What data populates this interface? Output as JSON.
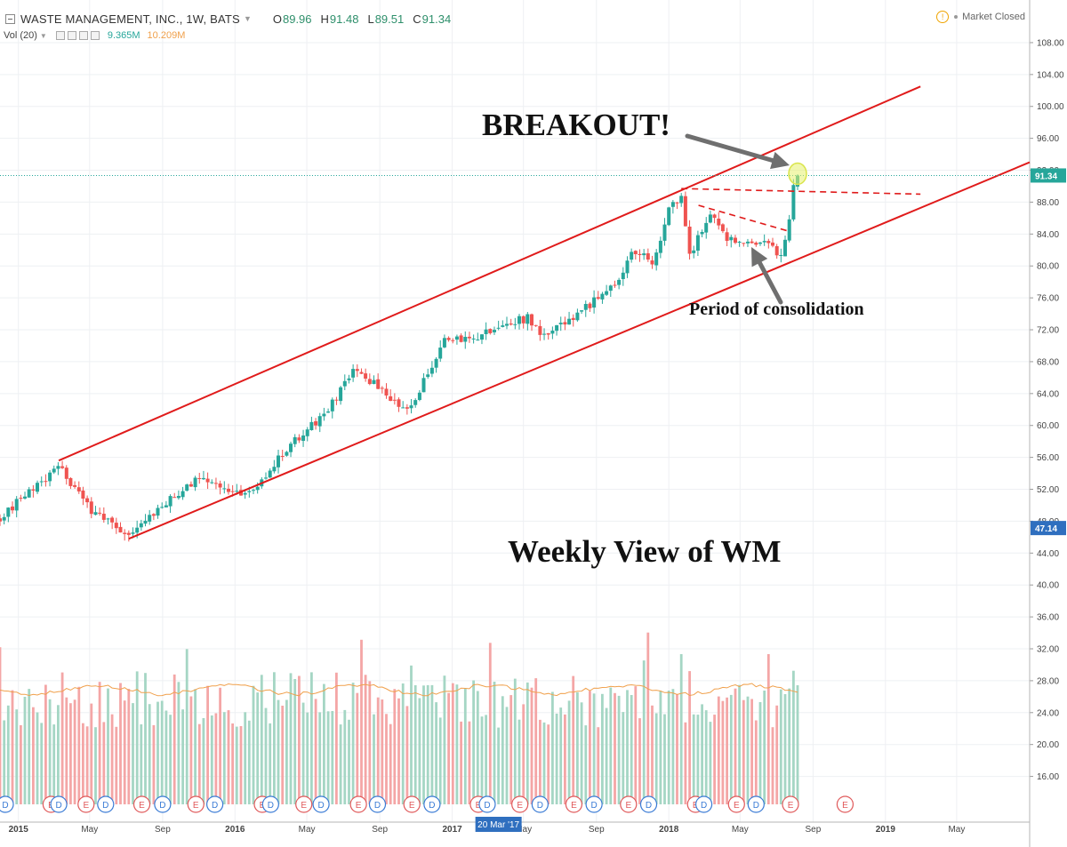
{
  "header": {
    "symbol": "WASTE MANAGEMENT, INC., 1W, BATS",
    "open_label": "O",
    "open": "89.96",
    "high_label": "H",
    "high": "91.48",
    "low_label": "L",
    "low": "89.51",
    "close_label": "C",
    "close": "91.34"
  },
  "volume_indicator": {
    "label": "Vol (20)",
    "value": "9.365M",
    "ma_value": "10.209M"
  },
  "market_status": "Market Closed",
  "annotations": {
    "breakout": "BREAKOUT!",
    "consolidation": "Period of consolidation",
    "weekly": "Weekly View of WM"
  },
  "colors": {
    "up": "#26a69a",
    "down": "#ef5350",
    "up_volume": "#a5d6c4",
    "down_volume": "#f4a6a6",
    "channel": "#e01b1b",
    "volume_ma": "#f0a04b",
    "axis_text": "#444444",
    "last_price_tag": "#26a69a",
    "reference_tag": "#2f6fbf",
    "crosshair_tag": "#2f6fbf"
  },
  "chart_data": {
    "type": "candlestick",
    "timeframe": "1W",
    "y_ticks": [
      "108.00",
      "104.00",
      "100.00",
      "96.00",
      "92.00",
      "88.00",
      "84.00",
      "80.00",
      "76.00",
      "72.00",
      "68.00",
      "64.00",
      "60.00",
      "56.00",
      "52.00",
      "48.00",
      "44.00",
      "40.00",
      "36.00",
      "32.00",
      "28.00",
      "24.00",
      "20.00",
      "16.00"
    ],
    "x_ticks": [
      "2015",
      "May",
      "Sep",
      "2016",
      "May",
      "Sep",
      "2017",
      "May",
      "Sep",
      "2018",
      "May",
      "Sep",
      "2019",
      "May"
    ],
    "x_range": [
      "2014-12-01",
      "2019-09-01"
    ],
    "price_range": [
      12.5,
      110
    ],
    "last_price": "91.34",
    "reference_price": "47.14",
    "crosshair_date": "20 Mar '17",
    "anchors": [
      [
        "2014-12-01",
        48.5
      ],
      [
        "2015-03-10",
        54.8
      ],
      [
        "2015-05-01",
        49.5
      ],
      [
        "2015-07-06",
        46.5
      ],
      [
        "2015-09-01",
        50.0
      ],
      [
        "2015-11-01",
        53.5
      ],
      [
        "2016-01-01",
        51.5
      ],
      [
        "2016-02-08",
        52.5
      ],
      [
        "2016-04-01",
        57.5
      ],
      [
        "2016-06-01",
        61.5
      ],
      [
        "2016-07-20",
        67.0
      ],
      [
        "2016-08-20",
        65.5
      ],
      [
        "2016-10-15",
        62.0
      ],
      [
        "2016-11-05",
        64.0
      ],
      [
        "2016-12-15",
        70.5
      ],
      [
        "2017-02-01",
        70.8
      ],
      [
        "2017-03-20",
        72.5
      ],
      [
        "2017-05-10",
        73.5
      ],
      [
        "2017-06-01",
        71.0
      ],
      [
        "2017-08-01",
        74.0
      ],
      [
        "2017-10-01",
        77.5
      ],
      [
        "2017-11-01",
        82.0
      ],
      [
        "2017-12-05",
        80.5
      ],
      [
        "2018-01-01",
        87.0
      ],
      [
        "2018-01-22",
        89.0
      ],
      [
        "2018-02-05",
        81.0
      ],
      [
        "2018-02-25",
        84.5
      ],
      [
        "2018-03-15",
        86.5
      ],
      [
        "2018-04-05",
        83.5
      ],
      [
        "2018-05-15",
        82.5
      ],
      [
        "2018-06-10",
        83.5
      ],
      [
        "2018-07-05",
        81.0
      ],
      [
        "2018-07-20",
        84.0
      ],
      [
        "2018-07-30",
        89.8
      ],
      [
        "2018-08-06",
        91.34
      ]
    ],
    "volume_scale_max": 40,
    "volume_ma_level": 24,
    "channel": {
      "upper": [
        [
          "2015-03-10",
          55.6
        ],
        [
          "2019-03-01",
          102.5
        ]
      ],
      "lower": [
        [
          "2015-07-06",
          45.8
        ],
        [
          "2019-09-01",
          93.0
        ]
      ]
    },
    "consolidation_lines": [
      [
        [
          "2018-01-22",
          89.7
        ],
        [
          "2019-03-01",
          89.0
        ]
      ],
      [
        [
          "2018-02-20",
          87.6
        ],
        [
          "2018-07-20",
          84.4
        ]
      ]
    ],
    "event_markers": [
      [
        "2014-12-10",
        "D"
      ],
      [
        "2015-02-25",
        "E"
      ],
      [
        "2015-03-10",
        "D"
      ],
      [
        "2015-04-25",
        "E"
      ],
      [
        "2015-05-28",
        "D"
      ],
      [
        "2015-07-28",
        "E"
      ],
      [
        "2015-09-01",
        "D"
      ],
      [
        "2015-10-27",
        "E"
      ],
      [
        "2015-11-28",
        "D"
      ],
      [
        "2016-02-16",
        "E"
      ],
      [
        "2016-03-01",
        "D"
      ],
      [
        "2016-04-26",
        "E"
      ],
      [
        "2016-05-25",
        "D"
      ],
      [
        "2016-07-27",
        "E"
      ],
      [
        "2016-08-28",
        "D"
      ],
      [
        "2016-10-25",
        "E"
      ],
      [
        "2016-11-28",
        "D"
      ],
      [
        "2017-02-14",
        "E"
      ],
      [
        "2017-03-01",
        "D"
      ],
      [
        "2017-04-25",
        "E"
      ],
      [
        "2017-05-29",
        "D"
      ],
      [
        "2017-07-25",
        "E"
      ],
      [
        "2017-08-28",
        "D"
      ],
      [
        "2017-10-25",
        "E"
      ],
      [
        "2017-11-28",
        "D"
      ],
      [
        "2018-02-15",
        "E"
      ],
      [
        "2018-03-01",
        "D"
      ],
      [
        "2018-04-25",
        "E"
      ],
      [
        "2018-05-28",
        "D"
      ],
      [
        "2018-07-25",
        "E"
      ],
      [
        "2018-10-25",
        "E"
      ]
    ]
  }
}
